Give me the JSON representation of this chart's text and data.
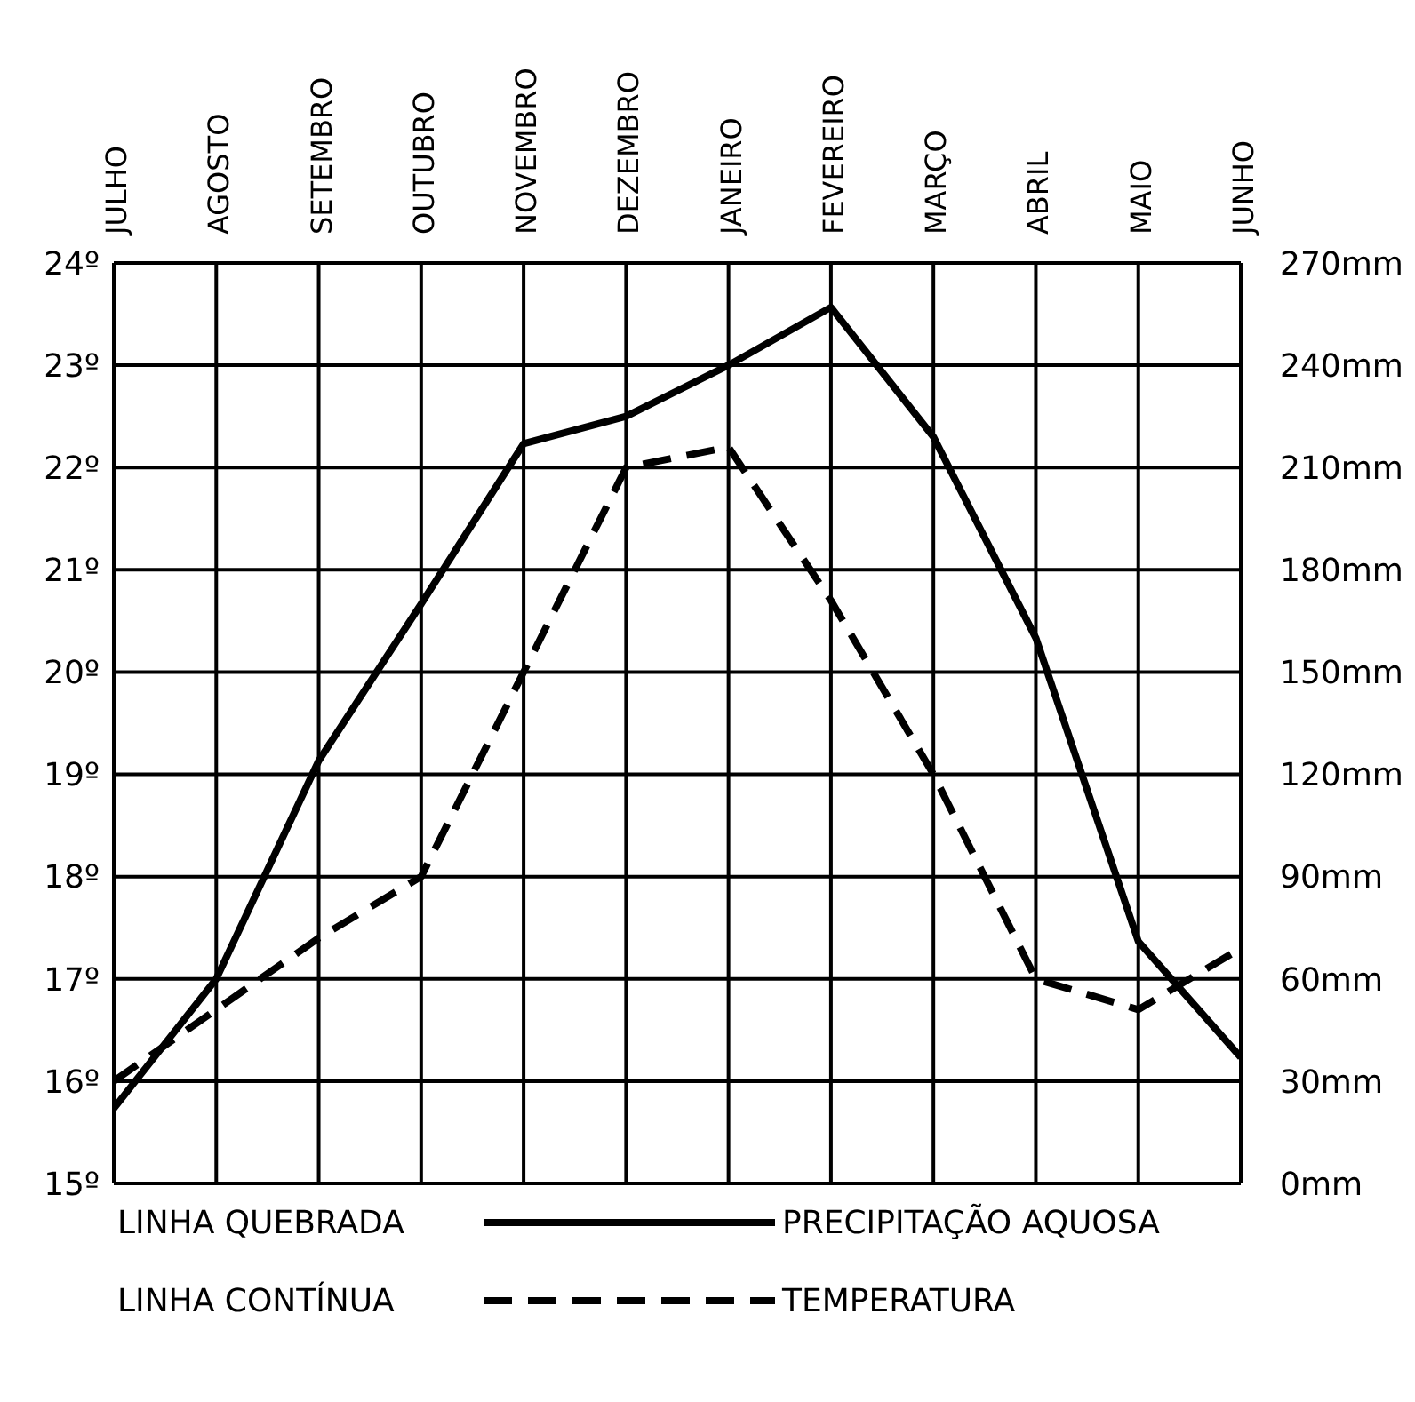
{
  "chart_data": {
    "type": "line",
    "categories": [
      "JULHO",
      "AGOSTO",
      "SETEMBRO",
      "OUTUBRO",
      "NOVEMBRO",
      "DEZEMBRO",
      "JANEIRO",
      "FEVEREIRO",
      "MARÇO",
      "ABRIL",
      "MAIO",
      "JUNHO"
    ],
    "series": [
      {
        "name": "PRECIPITAÇÃO AQUOSA",
        "color": "#000000",
        "axis": "y2",
        "line_style": "solid",
        "values": [
          22,
          60,
          124,
          170,
          217,
          225,
          240,
          257,
          219,
          160,
          71,
          37
        ]
      },
      {
        "name": "TEMPERATURA",
        "color": "#000000",
        "line_style": "dashed",
        "values": [
          16.0,
          16.7,
          17.4,
          18.0,
          20.0,
          22.0,
          22.2,
          20.7,
          19.0,
          17.0,
          16.7,
          17.3
        ]
      }
    ],
    "annotations": [
      "LINHA QUEBRADA",
      "LINHA CONTÍNUA"
    ],
    "ylim": [
      15,
      24
    ],
    "yticks": [
      {
        "value": 15,
        "label": "15º"
      },
      {
        "value": 16,
        "label": "16º"
      },
      {
        "value": 17,
        "label": "17º"
      },
      {
        "value": 18,
        "label": "18º"
      },
      {
        "value": 19,
        "label": "19º"
      },
      {
        "value": 20,
        "label": "20º"
      },
      {
        "value": 21,
        "label": "21º"
      },
      {
        "value": 22,
        "label": "22º"
      },
      {
        "value": 23,
        "label": "23º"
      },
      {
        "value": 24,
        "label": "24º"
      }
    ],
    "y2lim": [
      0,
      270
    ],
    "y2ticks": [
      {
        "value": 0,
        "label": "0mm"
      },
      {
        "value": 30,
        "label": "30mm"
      },
      {
        "value": 60,
        "label": "60mm"
      },
      {
        "value": 90,
        "label": "90mm"
      },
      {
        "value": 120,
        "label": "120mm"
      },
      {
        "value": 150,
        "label": "150mm"
      },
      {
        "value": 180,
        "label": "180mm"
      },
      {
        "value": 210,
        "label": "210mm"
      },
      {
        "value": 240,
        "label": "240mm"
      },
      {
        "value": 270,
        "label": "270mm"
      }
    ],
    "grid": true,
    "legend": "bottom",
    "marker": "none"
  }
}
